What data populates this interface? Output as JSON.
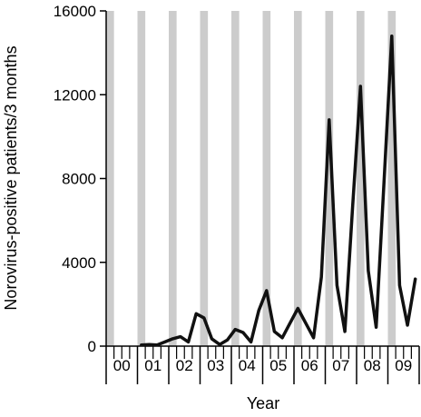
{
  "chart_data": {
    "type": "line",
    "title": "",
    "xlabel": "Year",
    "ylabel": "Norovirus-positive patients/3 months",
    "ylim": [
      0,
      16000
    ],
    "y_ticks": [
      0,
      4000,
      8000,
      12000,
      16000
    ],
    "y_tick_labels": [
      "0",
      "4000",
      "8000",
      "12000",
      "16000"
    ],
    "year_labels": [
      "00",
      "01",
      "02",
      "03",
      "04",
      "05",
      "06",
      "07",
      "08",
      "09"
    ],
    "quarters_per_year": 4,
    "shaded_quarter": "Q1 (January–March) of each year",
    "grid": false,
    "legend": "none",
    "colors": {
      "line": "#111111",
      "shade": "#cccccc",
      "axis": "#000000"
    },
    "series": [
      {
        "x": [
          "2001Q1",
          "2001Q2",
          "2001Q3",
          "2001Q4",
          "2002Q1",
          "2002Q2",
          "2002Q3",
          "2002Q4",
          "2003Q1",
          "2003Q2",
          "2003Q3",
          "2003Q4",
          "2004Q1",
          "2004Q2",
          "2004Q3",
          "2004Q4",
          "2005Q1",
          "2005Q2",
          "2005Q3",
          "2005Q4",
          "2006Q1",
          "2006Q2",
          "2006Q3",
          "2006Q4",
          "2007Q1",
          "2007Q2",
          "2007Q3",
          "2007Q4",
          "2008Q1",
          "2008Q2",
          "2008Q3",
          "2008Q4",
          "2009Q1",
          "2009Q2",
          "2009Q3",
          "2009Q4"
        ],
        "values": [
          50,
          80,
          50,
          200,
          350,
          450,
          200,
          1550,
          1350,
          350,
          80,
          300,
          800,
          650,
          200,
          1700,
          2650,
          700,
          400,
          1100,
          1800,
          1100,
          400,
          3300,
          10800,
          2900,
          700,
          6700,
          12400,
          3600,
          900,
          7800,
          14800,
          2900,
          1000,
          3200
        ]
      }
    ]
  }
}
